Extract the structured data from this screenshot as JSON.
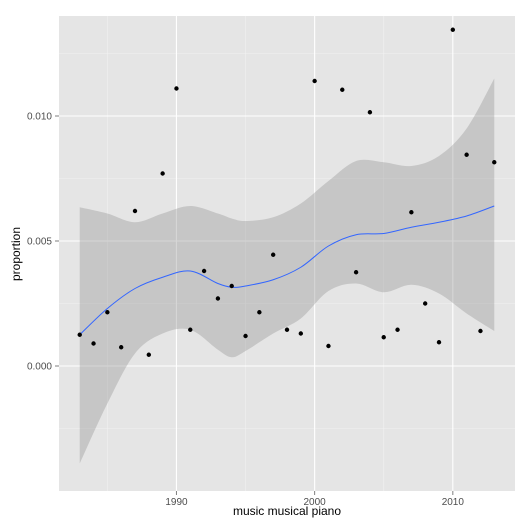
{
  "colors": {
    "panel_bg": "#e5e5e5",
    "grid_major": "#ffffff",
    "grid_minor": "#f2f2f2",
    "ribbon": "#999999",
    "line": "#3366ff",
    "point": "#000000"
  },
  "chart_data": {
    "type": "scatter",
    "xlabel": "music musical piano",
    "ylabel": "proportion",
    "xlim": [
      1981.5,
      2014.5
    ],
    "ylim": [
      -0.005,
      0.014
    ],
    "x_ticks": [
      1990,
      2000,
      2010
    ],
    "x_tick_labels": [
      "1990",
      "2000",
      "2010"
    ],
    "y_ticks": [
      0.0,
      0.005,
      0.01
    ],
    "y_tick_labels": [
      "0.000",
      "0.005",
      "0.010"
    ],
    "grid": true,
    "legend": "none",
    "points": [
      {
        "x": 1983,
        "y": 0.00125
      },
      {
        "x": 1984,
        "y": 0.0009
      },
      {
        "x": 1985,
        "y": 0.00215
      },
      {
        "x": 1986,
        "y": 0.00075
      },
      {
        "x": 1987,
        "y": 0.0062
      },
      {
        "x": 1988,
        "y": 0.00045
      },
      {
        "x": 1989,
        "y": 0.0077
      },
      {
        "x": 1990,
        "y": 0.0111
      },
      {
        "x": 1991,
        "y": 0.00145
      },
      {
        "x": 1992,
        "y": 0.0038
      },
      {
        "x": 1993,
        "y": 0.0027
      },
      {
        "x": 1994,
        "y": 0.0032
      },
      {
        "x": 1995,
        "y": 0.0012
      },
      {
        "x": 1996,
        "y": 0.00215
      },
      {
        "x": 1997,
        "y": 0.00445
      },
      {
        "x": 1998,
        "y": 0.00145
      },
      {
        "x": 1999,
        "y": 0.0013
      },
      {
        "x": 2000,
        "y": 0.0114
      },
      {
        "x": 2001,
        "y": 0.0008
      },
      {
        "x": 2002,
        "y": 0.01105
      },
      {
        "x": 2003,
        "y": 0.00375
      },
      {
        "x": 2004,
        "y": 0.01015
      },
      {
        "x": 2005,
        "y": 0.00115
      },
      {
        "x": 2006,
        "y": 0.00145
      },
      {
        "x": 2007,
        "y": 0.00615
      },
      {
        "x": 2008,
        "y": 0.0025
      },
      {
        "x": 2009,
        "y": 0.00095
      },
      {
        "x": 2010,
        "y": 0.01345
      },
      {
        "x": 2011,
        "y": 0.00845
      },
      {
        "x": 2012,
        "y": 0.0014
      },
      {
        "x": 2013,
        "y": 0.00815
      }
    ],
    "smooth": {
      "x": [
        1983,
        1985,
        1987,
        1989,
        1991,
        1993,
        1994,
        1995,
        1997,
        1999,
        2001,
        2003,
        2005,
        2007,
        2009,
        2011,
        2013
      ],
      "y": [
        0.00125,
        0.0023,
        0.0031,
        0.00355,
        0.0038,
        0.0033,
        0.00315,
        0.0032,
        0.00345,
        0.00395,
        0.0048,
        0.00525,
        0.0053,
        0.00555,
        0.00575,
        0.006,
        0.0064
      ],
      "lower": [
        -0.0039,
        -0.0015,
        0.0005,
        0.0013,
        0.00145,
        0.00065,
        0.00035,
        0.0006,
        0.0013,
        0.0019,
        0.003,
        0.0033,
        0.00295,
        0.00325,
        0.0029,
        0.0021,
        0.0014
      ],
      "upper": [
        0.00635,
        0.0061,
        0.00575,
        0.0061,
        0.0064,
        0.0061,
        0.0059,
        0.0058,
        0.00595,
        0.0065,
        0.0074,
        0.0082,
        0.00815,
        0.008,
        0.0084,
        0.0095,
        0.0115
      ]
    }
  }
}
